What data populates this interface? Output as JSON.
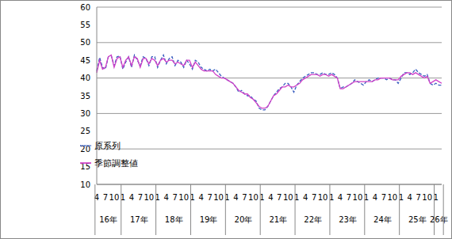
{
  "chart_data": {
    "type": "line",
    "categories": [
      "4",
      null,
      null,
      "7",
      null,
      null,
      "10",
      null,
      null,
      "1",
      null,
      null,
      "4",
      null,
      null,
      "7",
      null,
      null,
      "10",
      null,
      null,
      "1",
      null,
      null,
      "4",
      null,
      null,
      "7",
      null,
      null,
      "10",
      null,
      null,
      "1",
      null,
      null,
      "4",
      null,
      null,
      "7",
      null,
      null,
      "10",
      null,
      null,
      "1",
      null,
      null,
      "4",
      null,
      null,
      "7",
      null,
      null,
      "10",
      null,
      null,
      "1",
      null,
      null,
      "4",
      null,
      null,
      "7",
      null,
      null,
      "10",
      null,
      null,
      "1",
      null,
      null,
      "4",
      null,
      null,
      "7",
      null,
      null,
      "10",
      null,
      null,
      "1",
      null,
      null,
      "4",
      null,
      null,
      "7",
      null,
      null,
      "10",
      null,
      null,
      "1",
      null,
      null,
      "4",
      null,
      null,
      "7",
      null,
      null,
      "10",
      null,
      null,
      "1",
      null,
      null,
      "4",
      null,
      null,
      "7",
      null,
      null,
      "10",
      null,
      null,
      "1",
      null,
      null
    ],
    "year_groups": [
      {
        "label": "16年",
        "count": 9
      },
      {
        "label": "17年",
        "count": 12
      },
      {
        "label": "18年",
        "count": 12
      },
      {
        "label": "19年",
        "count": 12
      },
      {
        "label": "20年",
        "count": 12
      },
      {
        "label": "21年",
        "count": 12
      },
      {
        "label": "22年",
        "count": 12
      },
      {
        "label": "23年",
        "count": 12
      },
      {
        "label": "24年",
        "count": 12
      },
      {
        "label": "25年",
        "count": 12
      },
      {
        "label": "26年",
        "count": 3
      }
    ],
    "ylim": [
      10,
      60
    ],
    "yticks": [
      10,
      15,
      20,
      25,
      30,
      35,
      40,
      45,
      50,
      55,
      60
    ],
    "grid": true,
    "legend": "lower left",
    "series": [
      {
        "name": "原系列",
        "color": "#3b5fc0",
        "line_style": "dashed",
        "values": [
          42.0,
          45.8,
          43.0,
          42.5,
          46.0,
          46.3,
          43.5,
          46.0,
          46.2,
          42.5,
          44.5,
          46.0,
          43.0,
          46.5,
          45.0,
          43.5,
          46.0,
          45.5,
          43.5,
          46.0,
          46.0,
          43.0,
          45.0,
          46.5,
          44.0,
          45.5,
          46.0,
          43.5,
          45.0,
          44.5,
          43.0,
          45.0,
          44.0,
          42.5,
          45.0,
          44.5,
          43.0,
          42.5,
          42.0,
          42.5,
          42.0,
          42.5,
          41.5,
          40.5,
          40.0,
          39.5,
          39.0,
          38.5,
          37.5,
          36.0,
          36.5,
          35.5,
          35.0,
          35.0,
          34.0,
          33.5,
          31.5,
          31.0,
          31.0,
          32.0,
          33.5,
          35.0,
          36.0,
          37.0,
          37.5,
          38.5,
          38.5,
          37.5,
          36.0,
          38.0,
          39.0,
          40.0,
          40.5,
          41.0,
          41.5,
          41.5,
          41.0,
          41.0,
          41.5,
          41.0,
          41.0,
          41.5,
          41.0,
          40.0,
          37.0,
          37.5,
          37.5,
          38.0,
          38.5,
          39.5,
          39.0,
          38.5,
          38.0,
          39.0,
          39.5,
          39.0,
          39.5,
          40.0,
          40.0,
          40.0,
          39.5,
          40.0,
          39.5,
          39.5,
          38.5,
          40.0,
          41.5,
          41.5,
          41.0,
          41.5,
          42.5,
          41.5,
          41.0,
          40.5,
          41.0,
          38.5,
          38.0,
          38.5,
          38.0,
          38.0
        ]
      },
      {
        "name": "季節調整値",
        "color": "#d040c8",
        "line_style": "solid",
        "values": [
          41.5,
          45.0,
          42.5,
          43.0,
          46.0,
          46.5,
          43.0,
          45.5,
          46.0,
          43.0,
          45.0,
          46.0,
          43.5,
          46.0,
          45.5,
          43.0,
          45.5,
          45.5,
          44.0,
          45.5,
          45.0,
          43.5,
          45.0,
          45.5,
          44.5,
          45.0,
          45.0,
          44.0,
          44.5,
          44.0,
          43.5,
          45.0,
          45.0,
          43.0,
          44.5,
          43.5,
          42.5,
          42.0,
          42.0,
          42.0,
          42.0,
          41.0,
          40.5,
          40.0,
          40.0,
          39.5,
          39.0,
          38.5,
          37.5,
          36.5,
          36.0,
          35.5,
          35.5,
          34.5,
          34.0,
          33.0,
          32.0,
          31.5,
          31.5,
          32.0,
          33.5,
          35.0,
          35.5,
          36.5,
          37.5,
          37.5,
          38.0,
          37.5,
          37.5,
          38.0,
          38.5,
          39.5,
          40.0,
          40.5,
          41.0,
          41.0,
          41.0,
          40.5,
          41.0,
          41.0,
          40.5,
          41.0,
          40.5,
          40.0,
          37.0,
          37.0,
          37.5,
          38.0,
          38.5,
          39.0,
          39.0,
          39.0,
          39.0,
          39.0,
          39.0,
          39.0,
          39.5,
          39.5,
          40.0,
          40.0,
          40.0,
          40.0,
          39.5,
          39.5,
          39.5,
          40.5,
          41.0,
          41.5,
          41.5,
          41.0,
          41.5,
          41.0,
          40.5,
          40.0,
          40.5,
          38.5,
          39.0,
          39.5,
          39.0,
          38.5
        ]
      }
    ]
  }
}
